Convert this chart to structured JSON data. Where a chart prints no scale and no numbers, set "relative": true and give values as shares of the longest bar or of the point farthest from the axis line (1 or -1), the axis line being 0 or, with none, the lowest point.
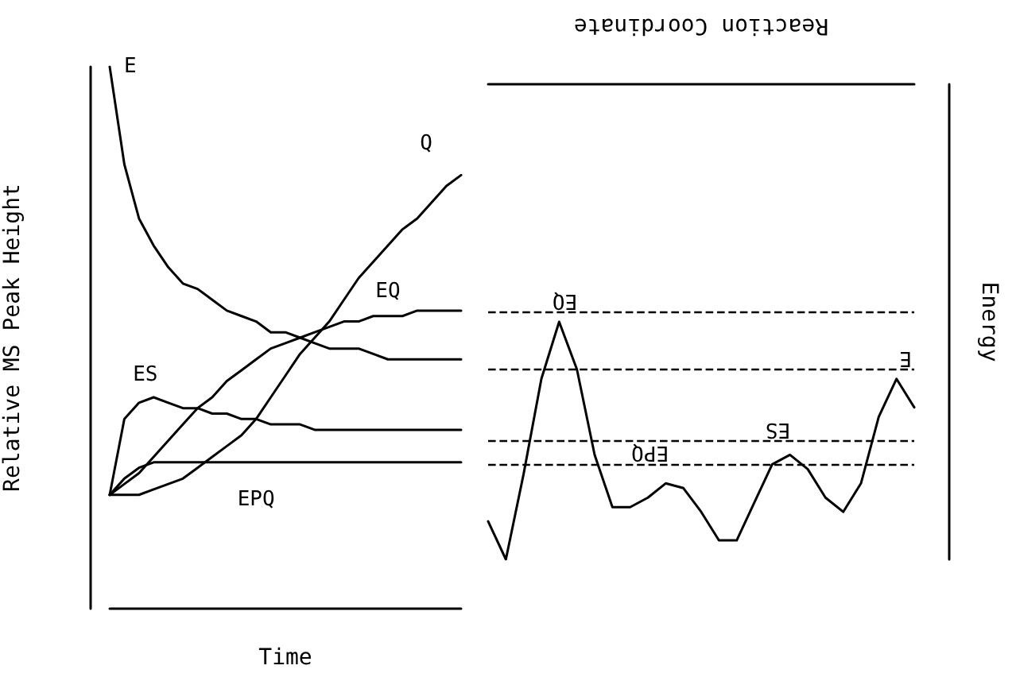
{
  "chart_data": [
    {
      "type": "line",
      "xlabel": "Time",
      "ylabel": "Relative MS Peak Height",
      "relative": true,
      "marker": "none",
      "line_style": "solid",
      "categories": [
        null,
        null,
        null,
        null,
        null,
        null,
        null,
        null,
        null,
        null,
        null,
        null,
        null,
        null,
        null,
        null,
        null,
        null,
        null,
        null,
        null,
        null,
        null,
        null,
        null
      ],
      "series": [
        {
          "name": "E",
          "color": "#000000",
          "values": [
            1.0,
            0.82,
            0.72,
            0.67,
            0.63,
            0.6,
            0.59,
            0.57,
            0.55,
            0.54,
            0.53,
            0.51,
            0.51,
            0.5,
            0.49,
            0.48,
            0.48,
            0.48,
            0.47,
            0.46,
            0.46,
            0.46,
            0.46,
            0.46,
            0.46
          ]
        },
        {
          "name": "Q",
          "color": "#000000",
          "values": [
            0.21,
            0.21,
            0.21,
            0.22,
            0.23,
            0.24,
            0.26,
            0.28,
            0.3,
            0.32,
            0.35,
            0.39,
            0.43,
            0.47,
            0.5,
            0.53,
            0.57,
            0.61,
            0.64,
            0.67,
            0.7,
            0.72,
            0.75,
            0.78,
            0.8
          ]
        },
        {
          "name": "EQ",
          "color": "#000000",
          "values": [
            0.21,
            0.23,
            0.25,
            0.28,
            0.31,
            0.34,
            0.37,
            0.39,
            0.42,
            0.44,
            0.46,
            0.48,
            0.49,
            0.5,
            0.51,
            0.52,
            0.53,
            0.53,
            0.54,
            0.54,
            0.54,
            0.55,
            0.55,
            0.55,
            0.55
          ]
        },
        {
          "name": "ES",
          "color": "#000000",
          "values": [
            0.21,
            0.35,
            0.38,
            0.39,
            0.38,
            0.37,
            0.37,
            0.36,
            0.36,
            0.35,
            0.35,
            0.34,
            0.34,
            0.34,
            0.33,
            0.33,
            0.33,
            0.33,
            0.33,
            0.33,
            0.33,
            0.33,
            0.33,
            0.33,
            0.33
          ]
        },
        {
          "name": "EPQ",
          "color": "#000000",
          "values": [
            0.21,
            0.24,
            0.26,
            0.27,
            0.27,
            0.27,
            0.27,
            0.27,
            0.27,
            0.27,
            0.27,
            0.27,
            0.27,
            0.27,
            0.27,
            0.27,
            0.27,
            0.27,
            0.27,
            0.27,
            0.27,
            0.27,
            0.27,
            0.27,
            0.27
          ]
        }
      ]
    },
    {
      "type": "line",
      "xlabel": "Reaction Coordinate",
      "ylabel": "Energy",
      "relative": true,
      "marker": "none",
      "line_style": "solid",
      "categories": [
        null,
        null,
        null,
        null,
        null,
        null,
        null,
        null,
        null,
        null,
        null,
        null,
        null,
        null,
        null,
        null,
        null,
        null,
        null,
        null,
        null,
        null,
        null,
        null,
        null
      ],
      "series": [
        {
          "color": "#000000",
          "values": [
            -0.92,
            -1.0,
            -0.82,
            -0.62,
            -0.5,
            -0.6,
            -0.78,
            -0.89,
            -0.89,
            -0.87,
            -0.84,
            -0.85,
            -0.9,
            -0.96,
            -0.96,
            -0.88,
            -0.8,
            -0.78,
            -0.81,
            -0.87,
            -0.9,
            -0.84,
            -0.7,
            -0.62,
            -0.68
          ]
        }
      ],
      "ref_lines": [
        {
          "axis": "y",
          "value": -0.48,
          "label": "EQ",
          "line_style": "dashed",
          "color": "#000000"
        },
        {
          "axis": "y",
          "value": -0.6,
          "label": "E",
          "line_style": "dashed",
          "color": "#000000"
        },
        {
          "axis": "y",
          "value": -0.75,
          "label": "ES",
          "line_style": "dashed",
          "color": "#000000"
        },
        {
          "axis": "y",
          "value": -0.8,
          "label": "EPQ",
          "line_style": "dashed",
          "color": "#000000"
        }
      ]
    }
  ]
}
